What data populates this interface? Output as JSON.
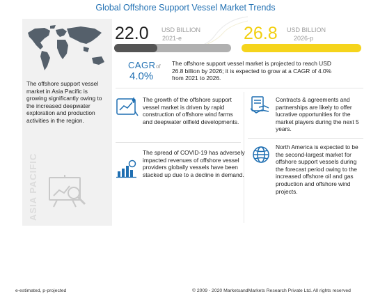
{
  "title": "Global Offshore Support Vessel Market Trends",
  "left_panel": {
    "text": "The offshore support vessel market in Asia Pacific is growing significantly owing to the increased deepwater exploration and production activities in the region.",
    "region_label": "ASIA PACIFIC"
  },
  "stat_2021": {
    "value": "22.0",
    "unit": "USD BILLION",
    "year": "2021-e",
    "color": "#555555"
  },
  "stat_2026": {
    "value": "26.8",
    "unit": "USD BILLION",
    "year": "2026-p",
    "color": "#f5d41c"
  },
  "cagr": {
    "label": "CAGR",
    "of": "of",
    "value": "4.0%"
  },
  "summary": "The offshore support vessel market is projected to reach USD 26.8 billion  by 2026; it is expected to grow at a CAGR of 4.0% from 2021 to 2026.",
  "cards": [
    {
      "icon": "wind-farm-growth-icon",
      "text": "The growth of the offshore support vessel market is driven by rapid construction of offshore wind farms and deepwater oilfield developments."
    },
    {
      "icon": "contract-handshake-icon",
      "text": "Contracts & agreements and partnerships are likely to offer lucrative opportunities for the market players during the next 5 years."
    },
    {
      "icon": "covid-chart-icon",
      "text": "The spread of COVID-19 has adversely impacted revenues of offshore vessel providers globally vessels have been stacked up due to a decline in demand."
    },
    {
      "icon": "globe-icon",
      "text": "North America is expected to be the second-largest market for offshore support vessels during the forecast period owing to the increased offshore oil and gas production and offshore wind projects."
    }
  ],
  "footer": {
    "left": "e-estimated, p-projected",
    "right": "© 2009 - 2020 MarketsandMarkets Research Private Ltd. All rights reserved"
  },
  "colors": {
    "accent": "#1f6fb2",
    "yellow": "#f5d41c",
    "dark_bar": "#555555"
  }
}
